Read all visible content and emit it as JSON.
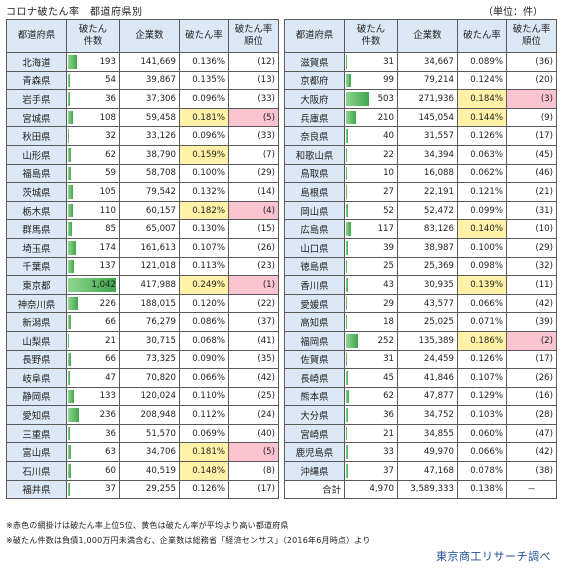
{
  "title": "コロナ破たん率　都道府県別",
  "unit": "（単位：件）",
  "headers": [
    "都道府県",
    "破たん\n件数",
    "企業数",
    "破たん率",
    "破たん率\n順位"
  ],
  "max_count": 1042,
  "left_rows": [
    {
      "pref": "北海道",
      "count": "193",
      "companies": "141,669",
      "rate": "0.136%",
      "rank": "(12)",
      "hl": ""
    },
    {
      "pref": "青森県",
      "count": "54",
      "companies": "39,867",
      "rate": "0.135%",
      "rank": "(13)",
      "hl": ""
    },
    {
      "pref": "岩手県",
      "count": "36",
      "companies": "37,306",
      "rate": "0.096%",
      "rank": "(33)",
      "hl": ""
    },
    {
      "pref": "宮城県",
      "count": "108",
      "companies": "59,458",
      "rate": "0.181%",
      "rank": "(5)",
      "hl": "pink"
    },
    {
      "pref": "秋田県",
      "count": "32",
      "companies": "33,126",
      "rate": "0.096%",
      "rank": "(33)",
      "hl": ""
    },
    {
      "pref": "山形県",
      "count": "62",
      "companies": "38,790",
      "rate": "0.159%",
      "rank": "(7)",
      "hl": "yellow"
    },
    {
      "pref": "福島県",
      "count": "59",
      "companies": "58,708",
      "rate": "0.100%",
      "rank": "(29)",
      "hl": ""
    },
    {
      "pref": "茨城県",
      "count": "105",
      "companies": "79,542",
      "rate": "0.132%",
      "rank": "(14)",
      "hl": ""
    },
    {
      "pref": "栃木県",
      "count": "110",
      "companies": "60,157",
      "rate": "0.182%",
      "rank": "(4)",
      "hl": "pink"
    },
    {
      "pref": "群馬県",
      "count": "85",
      "companies": "65,007",
      "rate": "0.130%",
      "rank": "(15)",
      "hl": ""
    },
    {
      "pref": "埼玉県",
      "count": "174",
      "companies": "161,613",
      "rate": "0.107%",
      "rank": "(26)",
      "hl": ""
    },
    {
      "pref": "千葉県",
      "count": "137",
      "companies": "121,018",
      "rate": "0.113%",
      "rank": "(23)",
      "hl": ""
    },
    {
      "pref": "東京都",
      "count": "1,042",
      "companies": "417,988",
      "rate": "0.249%",
      "rank": "(1)",
      "hl": "pink"
    },
    {
      "pref": "神奈川県",
      "count": "226",
      "companies": "188,015",
      "rate": "0.120%",
      "rank": "(22)",
      "hl": ""
    },
    {
      "pref": "新潟県",
      "count": "66",
      "companies": "76,279",
      "rate": "0.086%",
      "rank": "(37)",
      "hl": ""
    },
    {
      "pref": "山梨県",
      "count": "21",
      "companies": "30,715",
      "rate": "0.068%",
      "rank": "(41)",
      "hl": ""
    },
    {
      "pref": "長野県",
      "count": "66",
      "companies": "73,325",
      "rate": "0.090%",
      "rank": "(35)",
      "hl": ""
    },
    {
      "pref": "岐阜県",
      "count": "47",
      "companies": "70,820",
      "rate": "0.066%",
      "rank": "(42)",
      "hl": ""
    },
    {
      "pref": "静岡県",
      "count": "133",
      "companies": "120,024",
      "rate": "0.110%",
      "rank": "(25)",
      "hl": ""
    },
    {
      "pref": "愛知県",
      "count": "236",
      "companies": "208,948",
      "rate": "0.112%",
      "rank": "(24)",
      "hl": ""
    },
    {
      "pref": "三重県",
      "count": "36",
      "companies": "51,570",
      "rate": "0.069%",
      "rank": "(40)",
      "hl": ""
    },
    {
      "pref": "富山県",
      "count": "63",
      "companies": "34,706",
      "rate": "0.181%",
      "rank": "(5)",
      "hl": "pink"
    },
    {
      "pref": "石川県",
      "count": "60",
      "companies": "40,519",
      "rate": "0.148%",
      "rank": "(8)",
      "hl": "yellow"
    },
    {
      "pref": "福井県",
      "count": "37",
      "companies": "29,255",
      "rate": "0.126%",
      "rank": "(17)",
      "hl": ""
    }
  ],
  "right_rows": [
    {
      "pref": "滋賀県",
      "count": "31",
      "companies": "34,667",
      "rate": "0.089%",
      "rank": "(36)",
      "hl": ""
    },
    {
      "pref": "京都府",
      "count": "99",
      "companies": "79,214",
      "rate": "0.124%",
      "rank": "(20)",
      "hl": ""
    },
    {
      "pref": "大阪府",
      "count": "503",
      "companies": "271,936",
      "rate": "0.184%",
      "rank": "(3)",
      "hl": "pink"
    },
    {
      "pref": "兵庫県",
      "count": "210",
      "companies": "145,054",
      "rate": "0.144%",
      "rank": "(9)",
      "hl": "yellow"
    },
    {
      "pref": "奈良県",
      "count": "40",
      "companies": "31,557",
      "rate": "0.126%",
      "rank": "(17)",
      "hl": ""
    },
    {
      "pref": "和歌山県",
      "count": "22",
      "companies": "34,394",
      "rate": "0.063%",
      "rank": "(45)",
      "hl": ""
    },
    {
      "pref": "鳥取県",
      "count": "10",
      "companies": "16,088",
      "rate": "0.062%",
      "rank": "(46)",
      "hl": ""
    },
    {
      "pref": "島根県",
      "count": "27",
      "companies": "22,191",
      "rate": "0.121%",
      "rank": "(21)",
      "hl": ""
    },
    {
      "pref": "岡山県",
      "count": "52",
      "companies": "52,472",
      "rate": "0.099%",
      "rank": "(31)",
      "hl": ""
    },
    {
      "pref": "広島県",
      "count": "117",
      "companies": "83,126",
      "rate": "0.140%",
      "rank": "(10)",
      "hl": "yellow"
    },
    {
      "pref": "山口県",
      "count": "39",
      "companies": "38,987",
      "rate": "0.100%",
      "rank": "(29)",
      "hl": ""
    },
    {
      "pref": "徳島県",
      "count": "25",
      "companies": "25,369",
      "rate": "0.098%",
      "rank": "(32)",
      "hl": ""
    },
    {
      "pref": "香川県",
      "count": "43",
      "companies": "30,935",
      "rate": "0.139%",
      "rank": "(11)",
      "hl": "yellow"
    },
    {
      "pref": "愛媛県",
      "count": "29",
      "companies": "43,577",
      "rate": "0.066%",
      "rank": "(42)",
      "hl": ""
    },
    {
      "pref": "高知県",
      "count": "18",
      "companies": "25,025",
      "rate": "0.071%",
      "rank": "(39)",
      "hl": ""
    },
    {
      "pref": "福岡県",
      "count": "252",
      "companies": "135,389",
      "rate": "0.186%",
      "rank": "(2)",
      "hl": "pink"
    },
    {
      "pref": "佐賀県",
      "count": "31",
      "companies": "24,459",
      "rate": "0.126%",
      "rank": "(17)",
      "hl": ""
    },
    {
      "pref": "長崎県",
      "count": "45",
      "companies": "41,846",
      "rate": "0.107%",
      "rank": "(26)",
      "hl": ""
    },
    {
      "pref": "熊本県",
      "count": "62",
      "companies": "47,877",
      "rate": "0.129%",
      "rank": "(16)",
      "hl": ""
    },
    {
      "pref": "大分県",
      "count": "36",
      "companies": "34,752",
      "rate": "0.103%",
      "rank": "(28)",
      "hl": ""
    },
    {
      "pref": "宮崎県",
      "count": "21",
      "companies": "34,855",
      "rate": "0.060%",
      "rank": "(47)",
      "hl": ""
    },
    {
      "pref": "鹿児島県",
      "count": "33",
      "companies": "49,970",
      "rate": "0.066%",
      "rank": "(42)",
      "hl": ""
    },
    {
      "pref": "沖縄県",
      "count": "37",
      "companies": "47,168",
      "rate": "0.078%",
      "rank": "(38)",
      "hl": ""
    }
  ],
  "total": {
    "label": "合計",
    "count": "4,970",
    "companies": "3,589,333",
    "rate": "0.138%",
    "rank": "－"
  },
  "notes": [
    "※赤色の網掛けは破たん率上位5位、黄色は破たん率が平均より高い都道府県",
    "※破たん件数は負債1,000万円未満含む、企業数は総務省「経済センサス」（2016年6月時点）より"
  ],
  "source": "東京商工リサーチ調べ",
  "colors": {
    "header_bg": "#dce8f5",
    "top5": "#f9c3cf",
    "above_avg": "#fff2a8",
    "bar": "#3fa64b",
    "source": "#1f4e96"
  }
}
